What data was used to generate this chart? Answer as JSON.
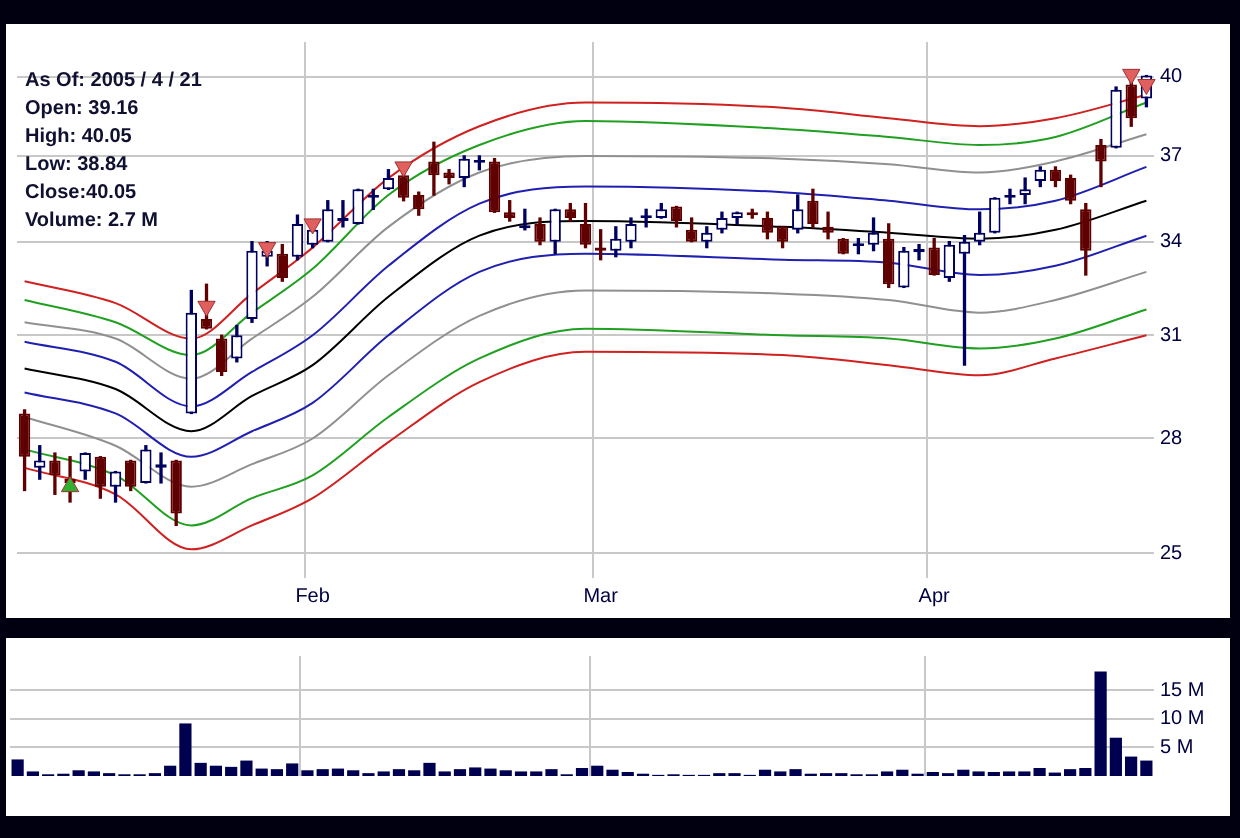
{
  "chart_data": [
    {
      "type": "candlestick",
      "log": true,
      "grid": true,
      "annotations": [
        "As Of: 2005 / 4 / 21",
        "Open: 39.16",
        "High: 40.05",
        "Low: 38.84",
        "Close:40.05",
        "Volume: 2.7 M"
      ],
      "categories": [
        null,
        null,
        null,
        null,
        null,
        null,
        null,
        null,
        null,
        null,
        null,
        null,
        null,
        null,
        null,
        null,
        null,
        null,
        null,
        "Feb",
        null,
        null,
        null,
        null,
        null,
        null,
        null,
        null,
        null,
        null,
        null,
        null,
        null,
        null,
        null,
        null,
        null,
        null,
        "Mar",
        null,
        null,
        null,
        null,
        null,
        null,
        null,
        null,
        null,
        null,
        null,
        null,
        null,
        null,
        null,
        null,
        null,
        null,
        null,
        null,
        null,
        "Apr",
        null,
        null,
        null,
        null,
        null,
        null,
        null,
        null,
        null,
        null,
        null,
        null,
        null,
        null
      ],
      "ylim": [
        24.4,
        41.4
      ],
      "yticks": [
        25,
        28,
        31,
        34,
        37,
        40
      ],
      "ohlc": [
        [
          28.7,
          28.8,
          26.6,
          27.5
        ],
        [
          27.2,
          27.8,
          26.9,
          27.4
        ],
        [
          27.4,
          27.6,
          26.5,
          27.0
        ],
        [
          26.9,
          27.5,
          26.3,
          26.8
        ],
        [
          27.1,
          27.6,
          26.9,
          27.6
        ],
        [
          27.5,
          27.5,
          26.4,
          26.7
        ],
        [
          26.7,
          27.1,
          26.3,
          27.1
        ],
        [
          27.4,
          27.4,
          26.6,
          26.7
        ],
        [
          26.8,
          27.8,
          26.8,
          27.7
        ],
        [
          27.2,
          27.6,
          26.8,
          27.3
        ],
        [
          27.4,
          27.4,
          25.7,
          26.0
        ],
        [
          28.7,
          32.4,
          28.7,
          31.7
        ],
        [
          31.5,
          32.6,
          31.2,
          31.2
        ],
        [
          30.9,
          31.0,
          29.8,
          29.9
        ],
        [
          30.3,
          31.3,
          30.2,
          31.0
        ],
        [
          31.5,
          34.0,
          31.4,
          33.7
        ],
        [
          33.5,
          34.0,
          33.2,
          33.7
        ],
        [
          33.6,
          33.9,
          32.7,
          32.8
        ],
        [
          33.5,
          34.9,
          33.4,
          34.6
        ],
        [
          33.9,
          34.5,
          33.8,
          34.4
        ],
        [
          34.0,
          35.4,
          34.0,
          35.1
        ],
        [
          34.7,
          35.4,
          34.5,
          34.8
        ],
        [
          34.6,
          35.8,
          34.6,
          35.8
        ],
        [
          35.5,
          35.8,
          35.1,
          35.6
        ],
        [
          35.8,
          36.5,
          35.8,
          36.2
        ],
        [
          36.3,
          36.6,
          35.4,
          35.5
        ],
        [
          35.6,
          35.7,
          34.9,
          35.1
        ],
        [
          36.8,
          37.5,
          35.6,
          36.3
        ],
        [
          36.4,
          36.5,
          36.0,
          36.2
        ],
        [
          36.2,
          37.0,
          35.9,
          36.9
        ],
        [
          36.75,
          37.0,
          36.5,
          36.85
        ],
        [
          36.8,
          36.9,
          35.0,
          35.0
        ],
        [
          35.0,
          35.4,
          34.7,
          34.8
        ],
        [
          34.45,
          35.1,
          34.4,
          34.55
        ],
        [
          34.6,
          34.8,
          33.9,
          34.0
        ],
        [
          34.0,
          35.1,
          33.6,
          35.1
        ],
        [
          35.1,
          35.3,
          34.7,
          34.8
        ],
        [
          34.6,
          35.3,
          33.8,
          33.9
        ],
        [
          33.8,
          34.4,
          33.4,
          33.7
        ],
        [
          33.7,
          34.5,
          33.5,
          34.1
        ],
        [
          34.0,
          34.8,
          33.8,
          34.6
        ],
        [
          34.8,
          35.1,
          34.5,
          34.9
        ],
        [
          34.8,
          35.3,
          34.8,
          35.1
        ],
        [
          35.2,
          35.2,
          34.5,
          34.7
        ],
        [
          34.4,
          34.8,
          34.0,
          34.0
        ],
        [
          34.0,
          34.5,
          33.8,
          34.3
        ],
        [
          34.4,
          35.0,
          34.3,
          34.8
        ],
        [
          34.8,
          35.0,
          34.6,
          35.0
        ],
        [
          35.0,
          35.1,
          34.8,
          34.9
        ],
        [
          34.8,
          35.0,
          34.1,
          34.3
        ],
        [
          34.5,
          34.5,
          33.8,
          34.0
        ],
        [
          34.4,
          35.6,
          34.3,
          35.1
        ],
        [
          35.4,
          35.8,
          34.5,
          34.6
        ],
        [
          34.5,
          35.0,
          34.1,
          34.3
        ],
        [
          34.1,
          34.1,
          33.6,
          33.6
        ],
        [
          33.85,
          34.1,
          33.6,
          33.95
        ],
        [
          33.9,
          34.8,
          33.7,
          34.3
        ],
        [
          34.1,
          34.6,
          32.5,
          32.6
        ],
        [
          32.5,
          33.8,
          32.5,
          33.7
        ],
        [
          33.65,
          33.9,
          33.4,
          33.75
        ],
        [
          33.8,
          34.1,
          32.9,
          32.9
        ],
        [
          32.8,
          34.0,
          32.7,
          33.9
        ],
        [
          33.6,
          34.2,
          30.1,
          34.0
        ],
        [
          34.0,
          35.0,
          33.9,
          34.3
        ],
        [
          34.3,
          35.5,
          34.3,
          35.5
        ],
        [
          35.5,
          35.8,
          35.3,
          35.6
        ],
        [
          35.6,
          36.2,
          35.3,
          35.8
        ],
        [
          36.1,
          36.6,
          35.9,
          36.5
        ],
        [
          36.5,
          36.6,
          35.9,
          36.1
        ],
        [
          36.2,
          36.3,
          35.3,
          35.4
        ],
        [
          35.1,
          35.3,
          32.9,
          33.7
        ],
        [
          37.4,
          37.6,
          35.9,
          36.8
        ],
        [
          37.3,
          39.6,
          37.3,
          39.5
        ],
        [
          39.7,
          39.9,
          38.1,
          38.4
        ],
        [
          39.16,
          40.05,
          38.84,
          40.05
        ]
      ],
      "colors": [
        "#600000",
        "#000060",
        "#600000",
        "#600000",
        "#000060",
        "#600000",
        "#000060",
        "#600000",
        "#000060",
        "#000060",
        "#600000",
        "#000060",
        "#600000",
        "#600000",
        "#000060",
        "#000060",
        "#000060",
        "#600000",
        "#000060",
        "#000060",
        "#000060",
        "#000060",
        "#000060",
        "#000060",
        "#000060",
        "#600000",
        "#600000",
        "#600000",
        "#600000",
        "#000060",
        "#000060",
        "#600000",
        "#600000",
        "#000060",
        "#600000",
        "#000060",
        "#600000",
        "#600000",
        "#600000",
        "#000060",
        "#000060",
        "#000060",
        "#000060",
        "#600000",
        "#600000",
        "#000060",
        "#000060",
        "#000060",
        "#600000",
        "#600000",
        "#600000",
        "#000060",
        "#600000",
        "#600000",
        "#600000",
        "#000060",
        "#000060",
        "#600000",
        "#000060",
        "#000060",
        "#600000",
        "#000060",
        "#000060",
        "#000060",
        "#000060",
        "#000060",
        "#000060",
        "#000060",
        "#600000",
        "#600000",
        "#600000",
        "#600000",
        "#000060",
        "#600000",
        "#000060"
      ],
      "series": [
        {
          "type": "line",
          "color": "#d02020",
          "values": [
            32.7,
            null,
            null,
            null,
            null,
            null,
            32.0,
            null,
            null,
            null,
            null,
            30.9,
            null,
            null,
            null,
            32.3,
            null,
            null,
            null,
            33.8,
            null,
            null,
            null,
            null,
            36.2,
            null,
            null,
            null,
            null,
            null,
            38.1,
            null,
            null,
            null,
            null,
            null,
            null,
            39.0,
            null,
            null,
            null,
            null,
            null,
            null,
            null,
            null,
            null,
            null,
            null,
            null,
            38.8,
            null,
            null,
            null,
            null,
            null,
            null,
            38.4,
            null,
            null,
            null,
            null,
            null,
            38.1,
            null,
            null,
            null,
            null,
            38.4,
            null,
            null,
            null,
            null,
            null,
            39.3
          ]
        },
        {
          "type": "line",
          "color": "#20a020",
          "values": [
            32.1,
            null,
            null,
            null,
            null,
            null,
            31.4,
            null,
            null,
            null,
            null,
            30.4,
            null,
            null,
            null,
            31.7,
            null,
            null,
            null,
            33.1,
            null,
            null,
            null,
            null,
            35.6,
            null,
            null,
            null,
            null,
            null,
            37.4,
            null,
            null,
            null,
            null,
            null,
            null,
            38.3,
            null,
            null,
            null,
            null,
            null,
            null,
            null,
            null,
            null,
            null,
            null,
            null,
            38.0,
            null,
            null,
            null,
            null,
            null,
            null,
            37.7,
            null,
            null,
            null,
            null,
            null,
            37.4,
            null,
            null,
            null,
            null,
            37.7,
            null,
            null,
            null,
            null,
            null,
            39.0
          ]
        },
        {
          "type": "line",
          "color": "#909090",
          "values": [
            31.4,
            null,
            null,
            null,
            null,
            null,
            30.9,
            null,
            null,
            null,
            null,
            29.7,
            null,
            null,
            null,
            30.9,
            null,
            null,
            null,
            32.2,
            null,
            null,
            null,
            null,
            34.5,
            null,
            null,
            null,
            null,
            null,
            36.4,
            null,
            null,
            null,
            null,
            null,
            null,
            37.0,
            null,
            null,
            null,
            null,
            null,
            null,
            null,
            null,
            null,
            null,
            null,
            null,
            36.9,
            null,
            null,
            null,
            null,
            null,
            null,
            36.7,
            null,
            null,
            null,
            null,
            null,
            36.4,
            null,
            null,
            null,
            null,
            36.8,
            null,
            null,
            null,
            null,
            null,
            37.8
          ]
        },
        {
          "type": "line",
          "color": "#2020b0",
          "values": [
            30.8,
            null,
            null,
            null,
            null,
            null,
            30.2,
            null,
            null,
            null,
            null,
            28.9,
            null,
            null,
            null,
            29.9,
            null,
            null,
            null,
            31.0,
            null,
            null,
            null,
            null,
            33.2,
            null,
            null,
            null,
            null,
            null,
            35.3,
            null,
            null,
            null,
            null,
            null,
            null,
            35.9,
            null,
            null,
            null,
            null,
            null,
            null,
            null,
            null,
            null,
            null,
            null,
            null,
            35.7,
            null,
            null,
            null,
            null,
            null,
            null,
            35.4,
            null,
            null,
            null,
            null,
            null,
            35.1,
            null,
            null,
            null,
            null,
            35.4,
            null,
            null,
            null,
            null,
            null,
            36.6
          ]
        },
        {
          "type": "line",
          "color": "#000000",
          "values": [
            30.0,
            null,
            null,
            null,
            null,
            null,
            29.4,
            null,
            null,
            null,
            null,
            28.2,
            null,
            null,
            null,
            29.2,
            null,
            null,
            null,
            30.1,
            null,
            null,
            null,
            null,
            32.2,
            null,
            null,
            null,
            null,
            null,
            34.2,
            null,
            null,
            null,
            null,
            null,
            null,
            34.7,
            null,
            null,
            null,
            null,
            null,
            null,
            null,
            null,
            null,
            null,
            null,
            null,
            34.5,
            null,
            null,
            null,
            null,
            null,
            null,
            34.3,
            null,
            null,
            null,
            null,
            null,
            34.1,
            null,
            null,
            null,
            null,
            34.4,
            null,
            null,
            null,
            null,
            null,
            35.4
          ]
        },
        {
          "type": "line",
          "color": "#2020b0",
          "values": [
            29.3,
            null,
            null,
            null,
            null,
            null,
            28.7,
            null,
            null,
            null,
            null,
            27.5,
            null,
            null,
            null,
            28.2,
            null,
            null,
            null,
            29.0,
            null,
            null,
            null,
            null,
            31.0,
            null,
            null,
            null,
            null,
            null,
            33.0,
            null,
            null,
            null,
            null,
            null,
            null,
            33.6,
            null,
            null,
            null,
            null,
            null,
            null,
            null,
            null,
            null,
            null,
            null,
            null,
            33.4,
            null,
            null,
            null,
            null,
            null,
            null,
            33.3,
            null,
            null,
            null,
            null,
            null,
            32.9,
            null,
            null,
            null,
            null,
            33.2,
            null,
            null,
            null,
            null,
            null,
            34.2
          ]
        },
        {
          "type": "line",
          "color": "#909090",
          "values": [
            28.6,
            null,
            null,
            null,
            null,
            null,
            27.8,
            null,
            null,
            null,
            null,
            26.7,
            null,
            null,
            null,
            27.3,
            null,
            null,
            null,
            28.0,
            null,
            null,
            null,
            null,
            29.8,
            null,
            null,
            null,
            null,
            null,
            31.6,
            null,
            null,
            null,
            null,
            null,
            null,
            32.4,
            null,
            null,
            null,
            null,
            null,
            null,
            null,
            null,
            null,
            null,
            null,
            null,
            32.3,
            null,
            null,
            null,
            null,
            null,
            null,
            32.1,
            null,
            null,
            null,
            null,
            null,
            31.7,
            null,
            null,
            null,
            null,
            32.1,
            null,
            null,
            null,
            null,
            null,
            33.0
          ]
        },
        {
          "type": "line",
          "color": "#20a020",
          "values": [
            27.7,
            null,
            null,
            null,
            null,
            null,
            27.0,
            null,
            null,
            null,
            null,
            25.7,
            null,
            null,
            null,
            26.4,
            null,
            null,
            null,
            27.0,
            null,
            null,
            null,
            null,
            28.6,
            null,
            null,
            null,
            null,
            null,
            30.3,
            null,
            null,
            null,
            null,
            null,
            null,
            31.2,
            null,
            null,
            null,
            null,
            null,
            null,
            null,
            null,
            null,
            null,
            null,
            null,
            31.0,
            null,
            null,
            null,
            null,
            null,
            null,
            30.9,
            null,
            null,
            null,
            null,
            null,
            30.6,
            null,
            null,
            null,
            null,
            30.9,
            null,
            null,
            null,
            null,
            null,
            31.8
          ]
        },
        {
          "type": "line",
          "color": "#d02020",
          "values": [
            27.2,
            null,
            null,
            null,
            null,
            null,
            26.5,
            null,
            null,
            null,
            null,
            25.1,
            null,
            null,
            null,
            25.7,
            null,
            null,
            null,
            26.4,
            null,
            null,
            null,
            null,
            27.9,
            null,
            null,
            null,
            null,
            null,
            29.6,
            null,
            null,
            null,
            null,
            null,
            null,
            30.5,
            null,
            null,
            null,
            null,
            null,
            null,
            null,
            null,
            null,
            null,
            null,
            null,
            30.4,
            null,
            null,
            null,
            null,
            null,
            null,
            30.1,
            null,
            null,
            null,
            null,
            null,
            29.8,
            null,
            null,
            null,
            null,
            30.3,
            null,
            null,
            null,
            null,
            null,
            31.0
          ]
        },
        {
          "type": "scatter",
          "marker": "triangle",
          "color": "#e06060",
          "values": [
            null,
            null,
            null,
            null,
            null,
            null,
            null,
            null,
            null,
            null,
            null,
            null,
            31.9,
            null,
            null,
            null,
            33.8,
            null,
            null,
            34.6,
            null,
            null,
            null,
            null,
            null,
            36.6,
            null,
            null,
            null,
            null,
            null,
            null,
            null,
            null,
            null,
            null,
            null,
            null,
            null,
            null,
            null,
            null,
            null,
            null,
            null,
            null,
            null,
            null,
            null,
            null,
            null,
            null,
            null,
            null,
            null,
            null,
            null,
            null,
            null,
            null,
            null,
            null,
            null,
            null,
            null,
            null,
            null,
            null,
            null,
            null,
            null,
            null,
            null,
            40.1,
            39.7
          ]
        },
        {
          "type": "scatter",
          "marker": "triangle",
          "color": "#30b030",
          "values": [
            null,
            null,
            null,
            26.7,
            null,
            null,
            null,
            null,
            null,
            null,
            null,
            null,
            null,
            null,
            null,
            null,
            null,
            null,
            null,
            null,
            null,
            null,
            null,
            null,
            null,
            null,
            null,
            null,
            null,
            null,
            null,
            null,
            null,
            null,
            null,
            null,
            null,
            null,
            null,
            null,
            null,
            null,
            null,
            null,
            null,
            null,
            null,
            null,
            null,
            null,
            null,
            null,
            null,
            null,
            null,
            null,
            null,
            null,
            null,
            null,
            null,
            null,
            null,
            null,
            null,
            null,
            null,
            null,
            null,
            null,
            null,
            null,
            null,
            null,
            null
          ]
        }
      ]
    },
    {
      "type": "bar",
      "grid": true,
      "color": "#000050",
      "categories": [
        null,
        null,
        null,
        null,
        null,
        null,
        null,
        null,
        null,
        null,
        null,
        null,
        null,
        null,
        null,
        null,
        null,
        null,
        null,
        null,
        null,
        null,
        null,
        null,
        null,
        null,
        null,
        null,
        null,
        null,
        null,
        null,
        null,
        null,
        null,
        null,
        null,
        null,
        null,
        null,
        null,
        null,
        null,
        null,
        null,
        null,
        null,
        null,
        null,
        null,
        null,
        null,
        null,
        null,
        null,
        null,
        null,
        null,
        null,
        null,
        null,
        null,
        null,
        null,
        null,
        null,
        null,
        null,
        null,
        null,
        null,
        null,
        null,
        null,
        null
      ],
      "ylim": [
        0,
        21
      ],
      "yticks": [
        {
          "value": 5,
          "label": "5 M"
        },
        {
          "value": 10,
          "label": "10 M"
        },
        {
          "value": 15,
          "label": "15 M"
        }
      ],
      "values": [
        2.9,
        0.8,
        0.3,
        0.4,
        1.0,
        0.8,
        0.5,
        0.3,
        0.3,
        0.5,
        1.8,
        9.2,
        2.3,
        1.8,
        1.6,
        2.7,
        1.3,
        1.2,
        2.2,
        1.0,
        1.2,
        1.3,
        1.0,
        0.5,
        0.8,
        1.2,
        1.0,
        2.3,
        0.8,
        1.2,
        1.5,
        1.3,
        1.0,
        0.8,
        0.8,
        1.2,
        0.3,
        1.4,
        1.8,
        1.1,
        0.7,
        0.4,
        0.2,
        0.3,
        0.2,
        0.2,
        0.5,
        0.5,
        0.2,
        1.1,
        0.8,
        1.2,
        0.4,
        0.5,
        0.5,
        0.3,
        0.3,
        0.8,
        1.1,
        0.4,
        0.7,
        0.5,
        1.1,
        0.8,
        0.7,
        0.8,
        0.8,
        1.4,
        0.6,
        1.2,
        1.4,
        18.3,
        6.7,
        3.4,
        2.7
      ]
    }
  ]
}
